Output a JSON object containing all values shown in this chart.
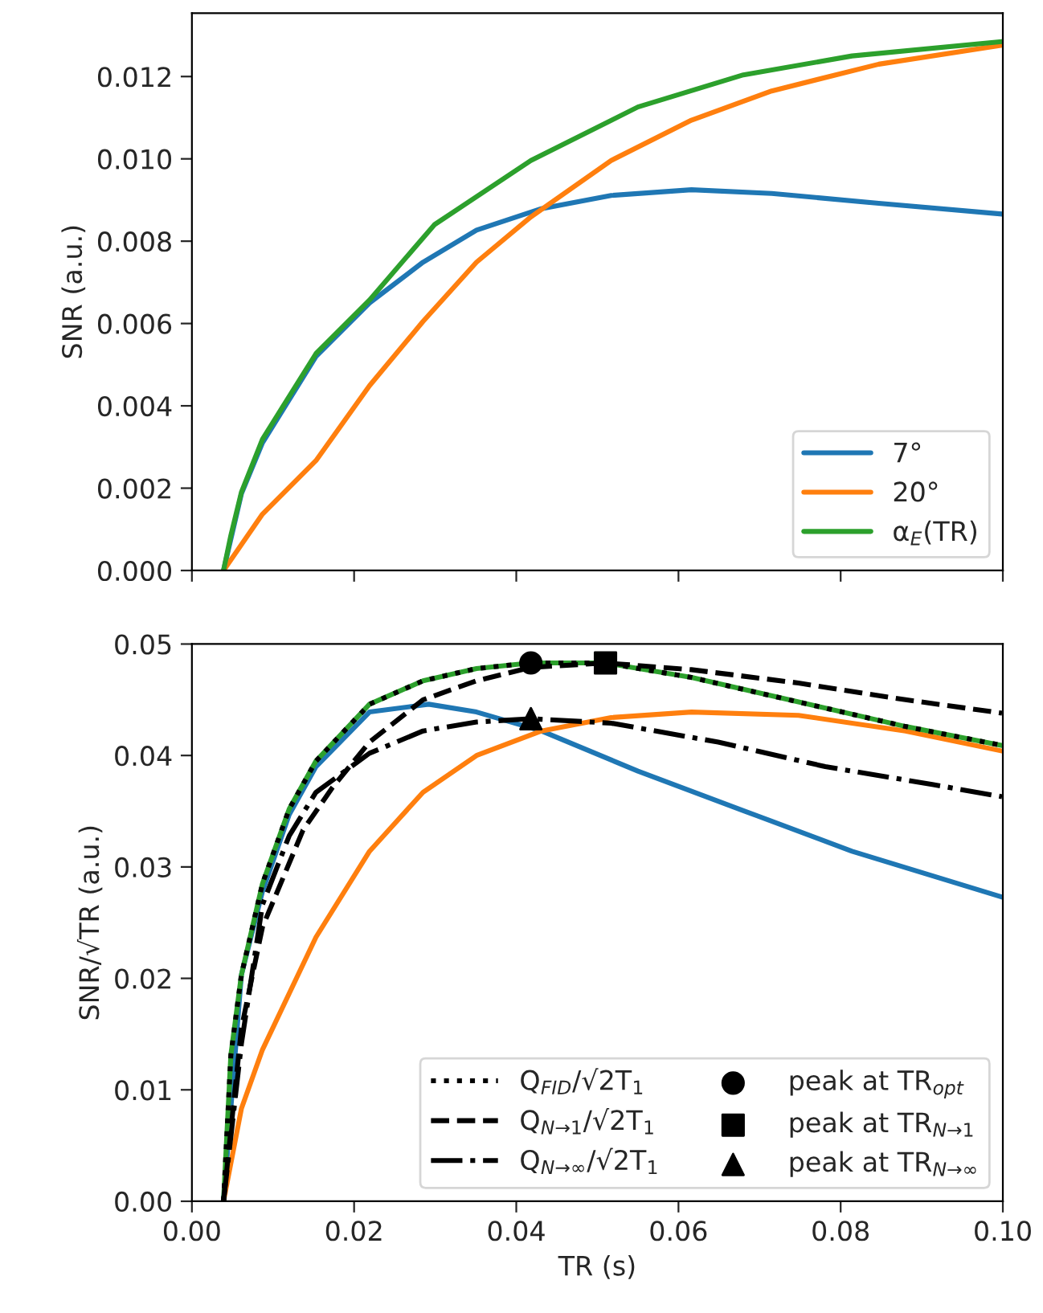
{
  "chart_data": [
    {
      "type": "line",
      "ylabel": "SNR (a.u.)",
      "xlim": [
        0,
        0.1
      ],
      "ylim": [
        0,
        0.01354
      ],
      "xticks": [
        0,
        0.02,
        0.04,
        0.06,
        0.08,
        0.1
      ],
      "yticks": [
        {
          "value": 0,
          "label": "0.000"
        },
        {
          "value": 0.002,
          "label": "0.002"
        },
        {
          "value": 0.004,
          "label": "0.004"
        },
        {
          "value": 0.006,
          "label": "0.006"
        },
        {
          "value": 0.008,
          "label": "0.008"
        },
        {
          "value": 0.01,
          "label": "0.010"
        },
        {
          "value": 0.012,
          "label": "0.012"
        }
      ],
      "tick_labels": "y",
      "legend": "lower right",
      "grid": false,
      "series": [
        {
          "name": "7°",
          "color": "#1f77b4",
          "x": [
            0.0039,
            0.0061,
            0.0087,
            0.0153,
            0.0219,
            0.0285,
            0.0351,
            0.0431,
            0.0517,
            0.0616,
            0.0715,
            0.0847,
            0.0999
          ],
          "values": [
            0,
            0.00186,
            0.0031,
            0.0052,
            0.0065,
            0.00749,
            0.00827,
            0.00879,
            0.00911,
            0.00925,
            0.00916,
            0.00892,
            0.00866
          ]
        },
        {
          "name": "20°",
          "color": "#ff7f0e",
          "x": [
            0.0039,
            0.0087,
            0.0153,
            0.0219,
            0.0285,
            0.0351,
            0.0418,
            0.0517,
            0.0616,
            0.0715,
            0.0847,
            0.0999
          ],
          "values": [
            0,
            0.00137,
            0.00267,
            0.00449,
            0.00605,
            0.00749,
            0.00859,
            0.00996,
            0.01094,
            0.01165,
            0.0123,
            0.01276
          ]
        },
        {
          "name": "α$_{E}$(TR)",
          "color": "#2ca02c",
          "x": [
            0.0039,
            0.0048,
            0.0061,
            0.0087,
            0.0153,
            0.0219,
            0.0299,
            0.0418,
            0.055,
            0.068,
            0.0814,
            0.0999
          ],
          "values": [
            0,
            0.00085,
            0.0019,
            0.00319,
            0.00527,
            0.00657,
            0.0084,
            0.00996,
            0.01126,
            0.01204,
            0.0125,
            0.01285
          ]
        }
      ]
    },
    {
      "type": "line",
      "xlabel": "TR (s)",
      "ylabel": "SNR/√TR (a.u.)",
      "xlim": [
        0,
        0.1
      ],
      "ylim": [
        0,
        0.05
      ],
      "xticks": [
        {
          "value": 0,
          "label": "0.00"
        },
        {
          "value": 0.02,
          "label": "0.02"
        },
        {
          "value": 0.04,
          "label": "0.04"
        },
        {
          "value": 0.06,
          "label": "0.06"
        },
        {
          "value": 0.08,
          "label": "0.08"
        },
        {
          "value": 0.1,
          "label": "0.10"
        }
      ],
      "yticks": [
        {
          "value": 0,
          "label": "0.00"
        },
        {
          "value": 0.01,
          "label": "0.01"
        },
        {
          "value": 0.02,
          "label": "0.02"
        },
        {
          "value": 0.03,
          "label": "0.03"
        },
        {
          "value": 0.04,
          "label": "0.04"
        },
        {
          "value": 0.05,
          "label": "0.05"
        }
      ],
      "legend": "lower right",
      "grid": false,
      "series": [
        {
          "color": "#1f77b4",
          "x": [
            0.0039,
            0.0061,
            0.0087,
            0.012,
            0.0153,
            0.0219,
            0.0292,
            0.0351,
            0.0431,
            0.055,
            0.0682,
            0.0814,
            0.0999
          ],
          "values": [
            0,
            0.0203,
            0.0278,
            0.0347,
            0.039,
            0.0439,
            0.0446,
            0.0439,
            0.0422,
            0.0386,
            0.035,
            0.0314,
            0.0273
          ]
        },
        {
          "color": "#ff7f0e",
          "x": [
            0.0039,
            0.0061,
            0.0087,
            0.0153,
            0.0219,
            0.0285,
            0.0351,
            0.0431,
            0.0517,
            0.0616,
            0.0748,
            0.088,
            0.0999
          ],
          "values": [
            0,
            0.0083,
            0.0136,
            0.0237,
            0.0314,
            0.0367,
            0.04,
            0.0422,
            0.0434,
            0.0439,
            0.0436,
            0.0422,
            0.0404
          ]
        },
        {
          "color": "#2ca02c",
          "x": [
            0.0039,
            0.0048,
            0.0061,
            0.0087,
            0.012,
            0.0153,
            0.0219,
            0.0285,
            0.0351,
            0.0418,
            0.051,
            0.0616,
            0.0748,
            0.088,
            0.0999
          ],
          "values": [
            0,
            0.0131,
            0.0203,
            0.0285,
            0.0352,
            0.0395,
            0.0446,
            0.0467,
            0.0478,
            0.0483,
            0.0483,
            0.047,
            0.0448,
            0.0426,
            0.0409
          ]
        },
        {
          "name": "Q$_{FID}$/√2T$_{1}$",
          "color": "#000000",
          "line_style": "dotted",
          "x": [
            0.0039,
            0.0048,
            0.0061,
            0.0087,
            0.012,
            0.0153,
            0.0219,
            0.0285,
            0.0351,
            0.0418,
            0.051,
            0.0616,
            0.0748,
            0.088,
            0.0999
          ],
          "values": [
            0,
            0.0131,
            0.0203,
            0.0285,
            0.0352,
            0.0395,
            0.0446,
            0.0467,
            0.0478,
            0.0483,
            0.0483,
            0.047,
            0.0448,
            0.0426,
            0.0409
          ]
        },
        {
          "name": "Q$_{N→1}$/√2T$_{1}$",
          "color": "#000000",
          "line_style": "dashed",
          "x": [
            0.0039,
            0.0061,
            0.0087,
            0.0137,
            0.0173,
            0.0219,
            0.0285,
            0.0351,
            0.0418,
            0.051,
            0.0616,
            0.0748,
            0.088,
            0.0999
          ],
          "values": [
            0,
            0.0155,
            0.0246,
            0.0333,
            0.0371,
            0.0412,
            0.045,
            0.0467,
            0.0479,
            0.0483,
            0.0477,
            0.0465,
            0.045,
            0.0438
          ]
        },
        {
          "name": "Q$_{N→∞}$/√2T$_{1}$",
          "color": "#000000",
          "line_style": "dashdot",
          "x": [
            0.0039,
            0.0061,
            0.0087,
            0.012,
            0.0153,
            0.0219,
            0.0285,
            0.0351,
            0.0418,
            0.0517,
            0.0649,
            0.0781,
            0.0913,
            0.0999
          ],
          "values": [
            0,
            0.0141,
            0.0266,
            0.0328,
            0.0367,
            0.0402,
            0.0422,
            0.043,
            0.0433,
            0.0429,
            0.0412,
            0.039,
            0.0374,
            0.0363
          ]
        },
        {
          "type": "scatter",
          "name": "peak at TR$_{opt}$",
          "color": "#000000",
          "marker": "circle",
          "x": [
            0.0418
          ],
          "values": [
            0.0483
          ]
        },
        {
          "type": "scatter",
          "name": "peak at TR$_{N→1}$",
          "color": "#000000",
          "marker": "square",
          "x": [
            0.051
          ],
          "values": [
            0.0483
          ]
        },
        {
          "type": "scatter",
          "name": "peak at TR$_{N→∞}$",
          "color": "#000000",
          "marker": "triangle",
          "x": [
            0.0418
          ],
          "values": [
            0.0433
          ]
        }
      ]
    }
  ]
}
